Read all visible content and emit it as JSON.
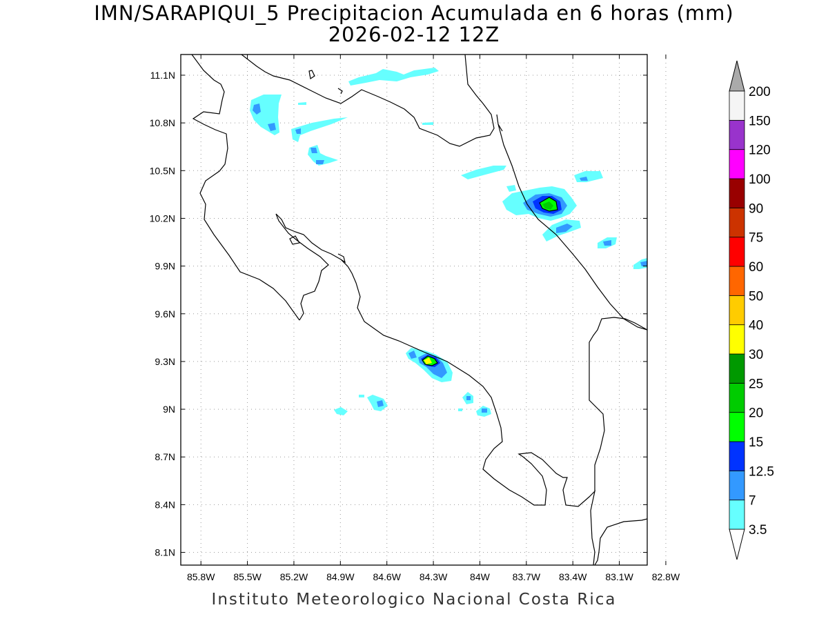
{
  "title": {
    "line1": "IMN/SARAPIQUI_5 Precipitacion Acumulada en 6 horas (mm)",
    "line2": "2026-02-12 12Z"
  },
  "footer": "Instituto Meteorologico Nacional Costa Rica",
  "map": {
    "lon_range": [
      -85.93,
      -82.92
    ],
    "lat_range": [
      8.02,
      11.23
    ],
    "x_ticks": [
      {
        "value": -85.8,
        "label": "85.8W"
      },
      {
        "value": -85.5,
        "label": "85.5W"
      },
      {
        "value": -85.2,
        "label": "85.2W"
      },
      {
        "value": -84.9,
        "label": "84.9W"
      },
      {
        "value": -84.6,
        "label": "84.6W"
      },
      {
        "value": -84.3,
        "label": "84.3W"
      },
      {
        "value": -84.0,
        "label": "84W"
      },
      {
        "value": -83.7,
        "label": "83.7W"
      },
      {
        "value": -83.4,
        "label": "83.4W"
      },
      {
        "value": -83.1,
        "label": "83.1W"
      },
      {
        "value": -82.8,
        "label": "82.8W"
      }
    ],
    "y_ticks": [
      {
        "value": 8.1,
        "label": "8.1N"
      },
      {
        "value": 8.4,
        "label": "8.4N"
      },
      {
        "value": 8.7,
        "label": "8.7N"
      },
      {
        "value": 9.0,
        "label": "9N"
      },
      {
        "value": 9.3,
        "label": "9.3N"
      },
      {
        "value": 9.6,
        "label": "9.6N"
      },
      {
        "value": 9.9,
        "label": "9.9N"
      },
      {
        "value": 10.2,
        "label": "10.2N"
      },
      {
        "value": 10.5,
        "label": "10.5N"
      },
      {
        "value": 10.8,
        "label": "10.8N"
      },
      {
        "value": 11.1,
        "label": "11.1N"
      }
    ],
    "gridlines": "dotted"
  },
  "colorbar": {
    "levels": [
      "3.5",
      "7",
      "12.5",
      "15",
      "20",
      "25",
      "30",
      "40",
      "50",
      "60",
      "75",
      "90",
      "100",
      "120",
      "150",
      "200"
    ],
    "colors": [
      "#66ffff",
      "#3399ff",
      "#0033ff",
      "#00ff00",
      "#00cc00",
      "#009900",
      "#ffff00",
      "#ffcc00",
      "#ff6600",
      "#ff0000",
      "#cc3300",
      "#990000",
      "#ff00ff",
      "#9933cc",
      "#f5f5f5"
    ],
    "arrow_top_color": "#aaaaaa",
    "arrow_bottom_color": "#ffffff"
  }
}
